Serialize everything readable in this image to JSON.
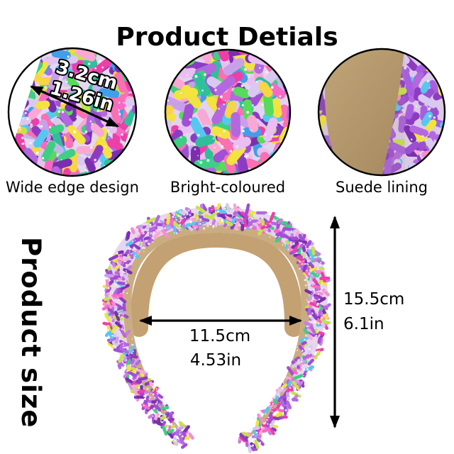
{
  "page": {
    "title": "Product Detials"
  },
  "details": [
    {
      "caption": "Wide edge design",
      "measurement": {
        "cm": "3.2cm",
        "inch": "1.26in"
      }
    },
    {
      "caption": "Bright-coloured"
    },
    {
      "caption": "Suede lining"
    }
  ],
  "size": {
    "label": "Product size",
    "width": {
      "cm": "11.5cm",
      "inch": "4.53in"
    },
    "height": {
      "cm": "15.5cm",
      "inch": "6.1in"
    }
  },
  "colors": {
    "background": "#ffffff",
    "text": "#000000",
    "arrow": "#000000",
    "suede": "#b5976b",
    "suede_shadow": "#9a7c50",
    "lining": "#c9ad80",
    "band_base": "#e8d5f0",
    "sprinkle_mixed": [
      "#a14fd4",
      "#8d3cc2",
      "#b368e0",
      "#7b2fae",
      "#c9a0e8",
      "#e8bff0",
      "#ee3fa8",
      "#f769c4",
      "#f9a8d4",
      "#fb6fb4",
      "#3ecf82",
      "#58da5c",
      "#2fbf9a",
      "#c6e24b",
      "#f2e33f",
      "#f7d544",
      "#3f9fe8",
      "#57c7f0",
      "#d9c8f0",
      "#c2b5ea"
    ],
    "sprinkle_band": [
      "#a14fd4",
      "#8d3cc2",
      "#b368e0",
      "#9b4fd0",
      "#7b2fae",
      "#c9a0e8",
      "#ee3fa8",
      "#f769c4",
      "#f9a8d4",
      "#c77fe0",
      "#d9c8f0",
      "#3ecf82",
      "#c6e24b",
      "#f2e33f",
      "#57c7f0",
      "#a14fd4",
      "#b368e0",
      "#f48fd0"
    ],
    "sprinkle_purple": [
      "#8d3cc2",
      "#9b4fd0",
      "#a75fe0",
      "#7b2fae",
      "#b368e0",
      "#8d3cc2",
      "#9b4fd0",
      "#f9a8d4",
      "#f48fc6",
      "#c6e24b",
      "#f2e33f",
      "#57c7f0",
      "#d9c8f0",
      "#8d3cc2",
      "#a75fe0"
    ],
    "glitter": [
      "#ffffff",
      "#f3e9fb",
      "#ffd9ef",
      "#d8f3ff",
      "#efefef"
    ]
  }
}
